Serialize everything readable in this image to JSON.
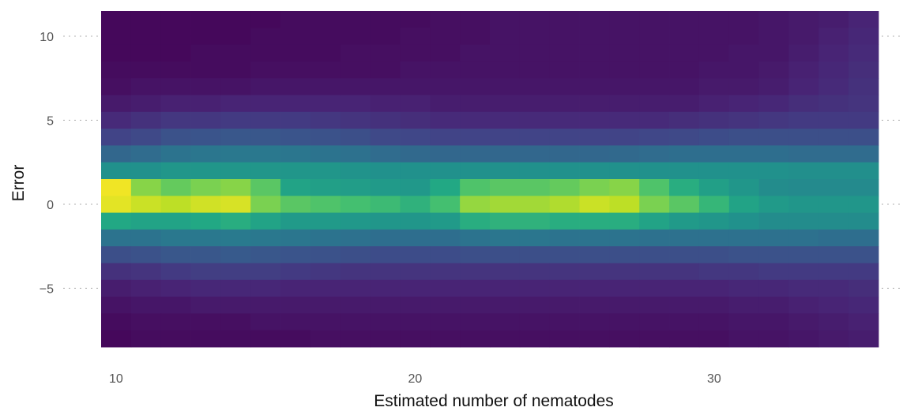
{
  "chart_data": {
    "type": "heatmap",
    "title": "",
    "xlabel": "Estimated number of nematodes",
    "ylabel": "Error",
    "x_ticks": [
      10,
      20,
      30
    ],
    "y_ticks": [
      10,
      5,
      0,
      -5
    ],
    "xlim": [
      9.5,
      35.5
    ],
    "ylim": [
      -8.5,
      11.5
    ],
    "x_bins": [
      10,
      11,
      12,
      13,
      14,
      15,
      16,
      17,
      18,
      19,
      20,
      21,
      22,
      23,
      24,
      25,
      26,
      27,
      28,
      29,
      30,
      31,
      32,
      33,
      34,
      35
    ],
    "y_bins": [
      11,
      10,
      9,
      8,
      7,
      6,
      5,
      4,
      3,
      2,
      1,
      0,
      -1,
      -2,
      -3,
      -4,
      -5,
      -6,
      -7,
      -8
    ],
    "z_range": [
      0,
      1
    ],
    "colormap": "viridis",
    "grid": "dotted major ticks, minimal theme",
    "legend": "none",
    "z": [
      [
        0.02,
        0.02,
        0.02,
        0.02,
        0.02,
        0.02,
        0.03,
        0.03,
        0.03,
        0.03,
        0.03,
        0.04,
        0.04,
        0.05,
        0.05,
        0.05,
        0.05,
        0.05,
        0.05,
        0.05,
        0.05,
        0.05,
        0.06,
        0.07,
        0.08,
        0.1
      ],
      [
        0.02,
        0.02,
        0.02,
        0.02,
        0.02,
        0.03,
        0.03,
        0.03,
        0.03,
        0.03,
        0.04,
        0.04,
        0.04,
        0.05,
        0.05,
        0.05,
        0.05,
        0.05,
        0.05,
        0.05,
        0.05,
        0.05,
        0.06,
        0.07,
        0.09,
        0.11
      ],
      [
        0.02,
        0.02,
        0.02,
        0.03,
        0.03,
        0.03,
        0.03,
        0.03,
        0.04,
        0.04,
        0.04,
        0.04,
        0.05,
        0.05,
        0.05,
        0.05,
        0.05,
        0.05,
        0.05,
        0.05,
        0.05,
        0.06,
        0.06,
        0.08,
        0.1,
        0.12
      ],
      [
        0.03,
        0.03,
        0.03,
        0.03,
        0.03,
        0.04,
        0.04,
        0.04,
        0.04,
        0.04,
        0.05,
        0.05,
        0.05,
        0.05,
        0.05,
        0.05,
        0.05,
        0.05,
        0.05,
        0.05,
        0.06,
        0.06,
        0.07,
        0.09,
        0.11,
        0.13
      ],
      [
        0.04,
        0.05,
        0.05,
        0.05,
        0.05,
        0.06,
        0.06,
        0.06,
        0.06,
        0.06,
        0.06,
        0.06,
        0.06,
        0.06,
        0.06,
        0.06,
        0.06,
        0.06,
        0.06,
        0.06,
        0.07,
        0.07,
        0.08,
        0.1,
        0.12,
        0.14
      ],
      [
        0.07,
        0.08,
        0.09,
        0.09,
        0.1,
        0.1,
        0.1,
        0.1,
        0.1,
        0.09,
        0.09,
        0.08,
        0.08,
        0.08,
        0.08,
        0.08,
        0.08,
        0.08,
        0.08,
        0.08,
        0.09,
        0.1,
        0.11,
        0.13,
        0.14,
        0.15
      ],
      [
        0.12,
        0.14,
        0.16,
        0.16,
        0.17,
        0.17,
        0.17,
        0.16,
        0.15,
        0.14,
        0.13,
        0.12,
        0.12,
        0.12,
        0.12,
        0.12,
        0.12,
        0.12,
        0.12,
        0.13,
        0.14,
        0.15,
        0.16,
        0.17,
        0.17,
        0.17
      ],
      [
        0.2,
        0.22,
        0.25,
        0.26,
        0.27,
        0.27,
        0.26,
        0.25,
        0.24,
        0.22,
        0.21,
        0.2,
        0.2,
        0.2,
        0.2,
        0.2,
        0.2,
        0.2,
        0.21,
        0.22,
        0.23,
        0.24,
        0.24,
        0.24,
        0.24,
        0.24
      ],
      [
        0.33,
        0.35,
        0.38,
        0.39,
        0.4,
        0.4,
        0.39,
        0.38,
        0.37,
        0.35,
        0.34,
        0.33,
        0.33,
        0.33,
        0.33,
        0.33,
        0.33,
        0.34,
        0.35,
        0.36,
        0.36,
        0.36,
        0.36,
        0.35,
        0.35,
        0.35
      ],
      [
        0.5,
        0.5,
        0.52,
        0.52,
        0.52,
        0.52,
        0.52,
        0.52,
        0.51,
        0.5,
        0.5,
        0.5,
        0.5,
        0.5,
        0.5,
        0.5,
        0.5,
        0.5,
        0.5,
        0.5,
        0.5,
        0.5,
        0.5,
        0.49,
        0.49,
        0.49
      ],
      [
        0.98,
        0.82,
        0.76,
        0.8,
        0.82,
        0.74,
        0.58,
        0.56,
        0.55,
        0.54,
        0.53,
        0.6,
        0.72,
        0.74,
        0.74,
        0.76,
        0.8,
        0.82,
        0.72,
        0.62,
        0.56,
        0.52,
        0.48,
        0.47,
        0.47,
        0.47
      ],
      [
        0.96,
        0.92,
        0.9,
        0.93,
        0.94,
        0.8,
        0.74,
        0.72,
        0.7,
        0.68,
        0.64,
        0.7,
        0.84,
        0.86,
        0.86,
        0.88,
        0.92,
        0.9,
        0.8,
        0.74,
        0.66,
        0.58,
        0.54,
        0.52,
        0.52,
        0.52
      ],
      [
        0.6,
        0.58,
        0.58,
        0.6,
        0.62,
        0.58,
        0.54,
        0.54,
        0.53,
        0.52,
        0.52,
        0.54,
        0.62,
        0.64,
        0.64,
        0.62,
        0.62,
        0.62,
        0.58,
        0.54,
        0.52,
        0.5,
        0.48,
        0.48,
        0.48,
        0.48
      ],
      [
        0.38,
        0.38,
        0.4,
        0.4,
        0.41,
        0.4,
        0.39,
        0.38,
        0.37,
        0.36,
        0.36,
        0.36,
        0.38,
        0.39,
        0.39,
        0.38,
        0.38,
        0.38,
        0.37,
        0.37,
        0.37,
        0.37,
        0.37,
        0.37,
        0.36,
        0.36
      ],
      [
        0.24,
        0.25,
        0.27,
        0.27,
        0.28,
        0.27,
        0.26,
        0.25,
        0.24,
        0.23,
        0.23,
        0.23,
        0.24,
        0.24,
        0.24,
        0.24,
        0.24,
        0.24,
        0.24,
        0.24,
        0.24,
        0.25,
        0.25,
        0.25,
        0.25,
        0.25
      ],
      [
        0.14,
        0.15,
        0.17,
        0.18,
        0.18,
        0.18,
        0.17,
        0.16,
        0.15,
        0.15,
        0.15,
        0.15,
        0.15,
        0.15,
        0.15,
        0.15,
        0.15,
        0.15,
        0.15,
        0.15,
        0.16,
        0.16,
        0.17,
        0.17,
        0.17,
        0.17
      ],
      [
        0.08,
        0.09,
        0.1,
        0.11,
        0.11,
        0.11,
        0.1,
        0.1,
        0.1,
        0.1,
        0.1,
        0.1,
        0.1,
        0.1,
        0.1,
        0.1,
        0.1,
        0.1,
        0.1,
        0.1,
        0.1,
        0.11,
        0.11,
        0.12,
        0.12,
        0.13
      ],
      [
        0.05,
        0.06,
        0.06,
        0.07,
        0.07,
        0.07,
        0.07,
        0.07,
        0.07,
        0.07,
        0.07,
        0.07,
        0.07,
        0.07,
        0.07,
        0.07,
        0.07,
        0.07,
        0.07,
        0.07,
        0.07,
        0.08,
        0.08,
        0.09,
        0.1,
        0.11
      ],
      [
        0.03,
        0.04,
        0.04,
        0.04,
        0.04,
        0.05,
        0.05,
        0.05,
        0.05,
        0.05,
        0.05,
        0.05,
        0.05,
        0.05,
        0.05,
        0.05,
        0.05,
        0.05,
        0.05,
        0.05,
        0.05,
        0.06,
        0.06,
        0.07,
        0.08,
        0.09
      ],
      [
        0.02,
        0.03,
        0.03,
        0.03,
        0.03,
        0.03,
        0.03,
        0.04,
        0.04,
        0.04,
        0.04,
        0.04,
        0.04,
        0.04,
        0.04,
        0.04,
        0.04,
        0.04,
        0.04,
        0.04,
        0.04,
        0.05,
        0.05,
        0.06,
        0.07,
        0.08
      ]
    ]
  }
}
